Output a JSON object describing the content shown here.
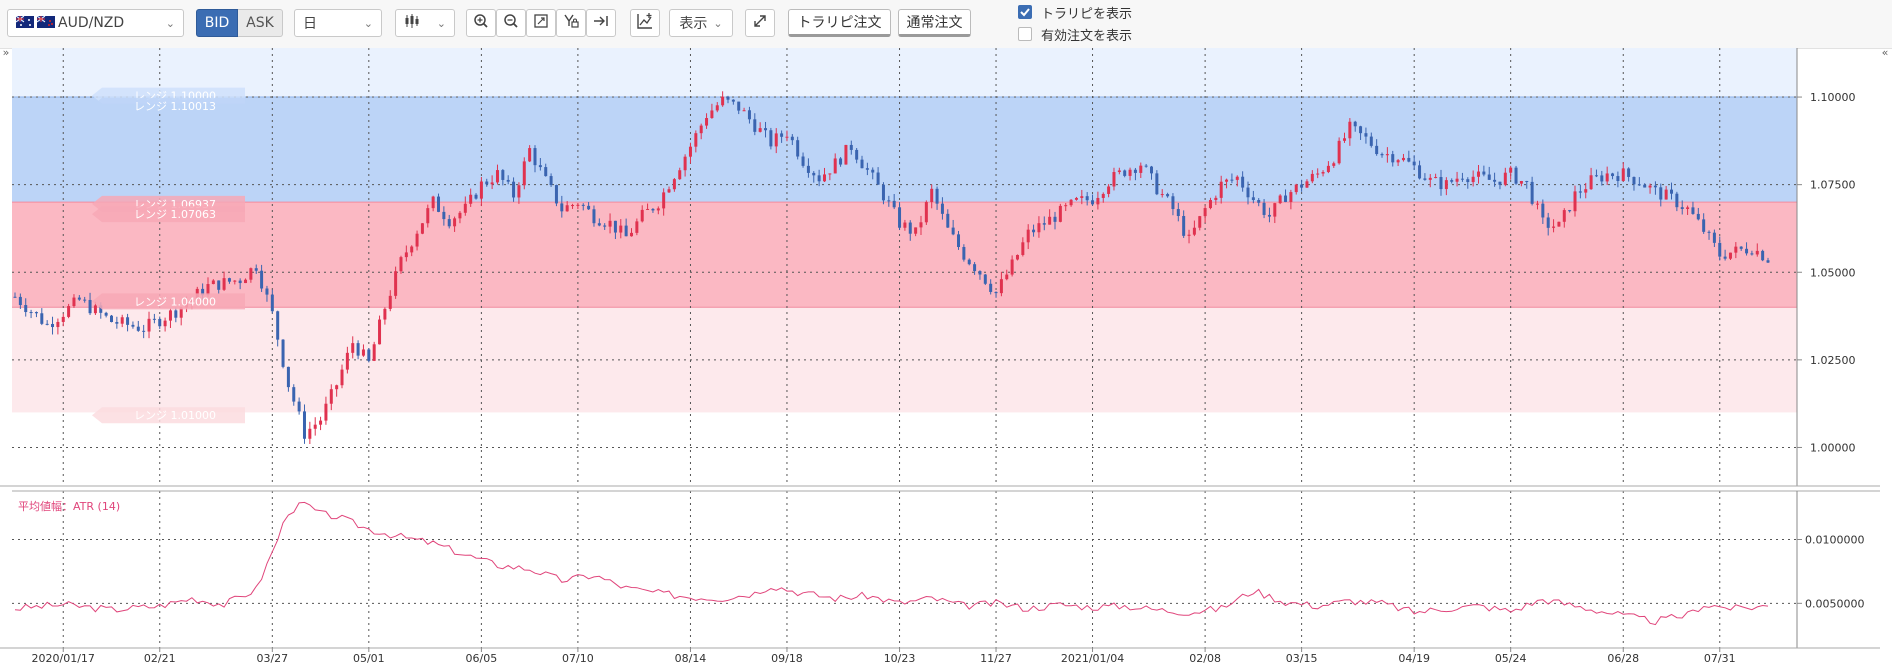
{
  "toolbar": {
    "pair": "AUD/NZD",
    "bid": "BID",
    "ask": "ASK",
    "period": "日",
    "display_label": "表示",
    "trap_order_label": "トラリピ注文",
    "normal_order_label": "通常注文",
    "show_traps_label": "トラリピを表示",
    "show_traps_checked": true,
    "show_active_orders_label": "有効注文を表示",
    "show_active_orders_checked": false,
    "icons": [
      "candlestick-icon",
      "zoom-in-icon",
      "zoom-out-icon",
      "fit-icon",
      "pin-icon",
      "jump-end-icon",
      "add-indicator-icon",
      "fullscreen-icon"
    ]
  },
  "chart_data": [
    {
      "type": "candlestick",
      "pair": "AUD/NZD",
      "x_ticks": [
        "2020/01/17",
        "02/21",
        "03/27",
        "05/01",
        "06/05",
        "07/10",
        "08/14",
        "09/18",
        "10/23",
        "11/27",
        "2021/01/04",
        "02/08",
        "03/15",
        "04/19",
        "05/24",
        "06/28",
        "07/31"
      ],
      "y_ticks": [
        "1.10000",
        "1.07500",
        "1.05000",
        "1.02500",
        "1.00000"
      ],
      "ylim": [
        0.989,
        1.114
      ],
      "close_path": [
        [
          0,
          1.043
        ],
        [
          2,
          1.035
        ],
        [
          4,
          1.042
        ],
        [
          6,
          1.036
        ],
        [
          8,
          1.034
        ],
        [
          10,
          1.039
        ],
        [
          12,
          1.046
        ],
        [
          14,
          1.048
        ],
        [
          15,
          1.052
        ],
        [
          16,
          1.038
        ],
        [
          17,
          1.018
        ],
        [
          18,
          1.004
        ],
        [
          19,
          1.008
        ],
        [
          20,
          1.018
        ],
        [
          21,
          1.03
        ],
        [
          22,
          1.024
        ],
        [
          23,
          1.04
        ],
        [
          24,
          1.053
        ],
        [
          25,
          1.062
        ],
        [
          26,
          1.07
        ],
        [
          27,
          1.065
        ],
        [
          28,
          1.068
        ],
        [
          29,
          1.075
        ],
        [
          30,
          1.078
        ],
        [
          31,
          1.072
        ],
        [
          32,
          1.085
        ],
        [
          33,
          1.076
        ],
        [
          34,
          1.068
        ],
        [
          35,
          1.07
        ],
        [
          36,
          1.066
        ],
        [
          37,
          1.064
        ],
        [
          38,
          1.06
        ],
        [
          39,
          1.066
        ],
        [
          40,
          1.07
        ],
        [
          41,
          1.078
        ],
        [
          42,
          1.086
        ],
        [
          43,
          1.095
        ],
        [
          44,
          1.099
        ],
        [
          45,
          1.097
        ],
        [
          46,
          1.092
        ],
        [
          47,
          1.087
        ],
        [
          48,
          1.09
        ],
        [
          49,
          1.082
        ],
        [
          50,
          1.077
        ],
        [
          51,
          1.081
        ],
        [
          52,
          1.086
        ],
        [
          53,
          1.079
        ],
        [
          54,
          1.072
        ],
        [
          55,
          1.064
        ],
        [
          56,
          1.061
        ],
        [
          57,
          1.073
        ],
        [
          58,
          1.062
        ],
        [
          59,
          1.055
        ],
        [
          60,
          1.05
        ],
        [
          61,
          1.044
        ],
        [
          62,
          1.052
        ],
        [
          63,
          1.061
        ],
        [
          64,
          1.064
        ],
        [
          65,
          1.067
        ],
        [
          66,
          1.07
        ],
        [
          67,
          1.071
        ],
        [
          68,
          1.076
        ],
        [
          69,
          1.079
        ],
        [
          70,
          1.081
        ],
        [
          71,
          1.074
        ],
        [
          72,
          1.068
        ],
        [
          73,
          1.059
        ],
        [
          74,
          1.068
        ],
        [
          75,
          1.075
        ],
        [
          76,
          1.077
        ],
        [
          77,
          1.071
        ],
        [
          78,
          1.066
        ],
        [
          79,
          1.072
        ],
        [
          80,
          1.075
        ],
        [
          81,
          1.078
        ],
        [
          82,
          1.083
        ],
        [
          83,
          1.091
        ],
        [
          84,
          1.088
        ],
        [
          85,
          1.084
        ],
        [
          86,
          1.083
        ],
        [
          87,
          1.08
        ],
        [
          88,
          1.076
        ],
        [
          89,
          1.075
        ],
        [
          90,
          1.078
        ],
        [
          91,
          1.077
        ],
        [
          92,
          1.076
        ],
        [
          93,
          1.078
        ],
        [
          94,
          1.075
        ],
        [
          95,
          1.064
        ],
        [
          96,
          1.063
        ],
        [
          97,
          1.072
        ],
        [
          98,
          1.076
        ],
        [
          99,
          1.078
        ],
        [
          100,
          1.078
        ],
        [
          101,
          1.076
        ],
        [
          102,
          1.073
        ],
        [
          103,
          1.071
        ],
        [
          104,
          1.068
        ],
        [
          105,
          1.062
        ],
        [
          106,
          1.055
        ],
        [
          107,
          1.056
        ],
        [
          108,
          1.057
        ],
        [
          109,
          1.054
        ]
      ],
      "ranges": [
        {
          "label": "レンジ 1.10000",
          "color": "#cfe0fb"
        },
        {
          "label": "レンジ 1.10013",
          "color": "#bcd4f7"
        },
        {
          "label": "レンジ 1.06937",
          "color": "#f7a8b6"
        },
        {
          "label": "レンジ 1.07063",
          "color": "#f7a8b6"
        },
        {
          "label": "レンジ 1.04000",
          "color": "#f7a8b6"
        },
        {
          "label": "レンジ 1.01000",
          "color": "#fcdcdf"
        }
      ],
      "bands": [
        {
          "from": 1.1,
          "to": 1.114,
          "color": "#eaf2fe"
        },
        {
          "from": 1.07,
          "to": 1.1,
          "color": "#bcd4f7"
        },
        {
          "from": 1.04,
          "to": 1.07,
          "color": "#fbb8c3"
        },
        {
          "from": 1.01,
          "to": 1.04,
          "color": "#fde9ec"
        }
      ]
    },
    {
      "type": "line",
      "title": "平均値幅：ATR (14)",
      "y_ticks": [
        "0.0100000",
        "0.0050000"
      ],
      "ylim": [
        0.0015,
        0.0138
      ],
      "color": "#e0457b",
      "values": [
        [
          0,
          0.0046
        ],
        [
          3,
          0.0049
        ],
        [
          6,
          0.0045
        ],
        [
          9,
          0.0048
        ],
        [
          11,
          0.0054
        ],
        [
          13,
          0.0049
        ],
        [
          15,
          0.0061
        ],
        [
          16,
          0.009
        ],
        [
          17,
          0.0122
        ],
        [
          18,
          0.0128
        ],
        [
          19,
          0.012
        ],
        [
          20,
          0.0118
        ],
        [
          22,
          0.0108
        ],
        [
          24,
          0.0102
        ],
        [
          26,
          0.0097
        ],
        [
          28,
          0.0088
        ],
        [
          30,
          0.008
        ],
        [
          32,
          0.0077
        ],
        [
          34,
          0.0068
        ],
        [
          36,
          0.0072
        ],
        [
          38,
          0.0062
        ],
        [
          40,
          0.0058
        ],
        [
          42,
          0.0055
        ],
        [
          44,
          0.0054
        ],
        [
          46,
          0.0058
        ],
        [
          47,
          0.0064
        ],
        [
          49,
          0.0058
        ],
        [
          51,
          0.0054
        ],
        [
          53,
          0.0056
        ],
        [
          55,
          0.005
        ],
        [
          57,
          0.0054
        ],
        [
          59,
          0.0048
        ],
        [
          61,
          0.005
        ],
        [
          63,
          0.0046
        ],
        [
          65,
          0.0049
        ],
        [
          67,
          0.0047
        ],
        [
          69,
          0.0048
        ],
        [
          71,
          0.0045
        ],
        [
          73,
          0.0043
        ],
        [
          75,
          0.0046
        ],
        [
          77,
          0.006
        ],
        [
          79,
          0.0051
        ],
        [
          81,
          0.0048
        ],
        [
          83,
          0.0052
        ],
        [
          85,
          0.005
        ],
        [
          87,
          0.0043
        ],
        [
          89,
          0.0046
        ],
        [
          91,
          0.0048
        ],
        [
          93,
          0.0044
        ],
        [
          95,
          0.0053
        ],
        [
          97,
          0.0048
        ],
        [
          99,
          0.0043
        ],
        [
          101,
          0.0038
        ],
        [
          102,
          0.0036
        ],
        [
          104,
          0.0041
        ],
        [
          105,
          0.0049
        ],
        [
          107,
          0.0046
        ],
        [
          109,
          0.0048
        ]
      ]
    }
  ]
}
